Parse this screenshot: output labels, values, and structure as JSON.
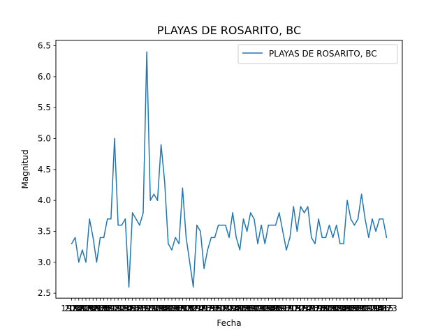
{
  "chart_data": {
    "type": "line",
    "title": "PLAYAS DE ROSARITO, BC",
    "xlabel": "Fecha",
    "ylabel": "Magnitud",
    "ylim": [
      2.42,
      6.59
    ],
    "yticks": [
      "2.5",
      "3.0",
      "3.5",
      "4.0",
      "4.5",
      "5.0",
      "5.5",
      "6.0",
      "6.5"
    ],
    "x_tick_first": "1974",
    "x_tick_last": "2023",
    "legend_position": "top-right",
    "grid": false,
    "colors": {
      "line": "#1f77b4"
    },
    "series": [
      {
        "name": "PLAYAS DE ROSARITO, BC",
        "values": [
          3.3,
          3.4,
          3.0,
          3.2,
          3.0,
          3.7,
          3.4,
          3.0,
          3.4,
          3.4,
          3.7,
          3.7,
          5.0,
          3.6,
          3.6,
          3.7,
          2.6,
          3.8,
          3.7,
          3.6,
          3.8,
          6.4,
          4.0,
          4.1,
          4.0,
          4.9,
          4.3,
          3.3,
          3.2,
          3.4,
          3.3,
          4.2,
          3.4,
          3.0,
          2.6,
          3.6,
          3.5,
          2.9,
          3.2,
          3.4,
          3.4,
          3.6,
          3.6,
          3.6,
          3.4,
          3.8,
          3.4,
          3.2,
          3.7,
          3.5,
          3.8,
          3.7,
          3.3,
          3.6,
          3.3,
          3.6,
          3.6,
          3.6,
          3.8,
          3.5,
          3.2,
          3.4,
          3.9,
          3.5,
          3.9,
          3.8,
          3.9,
          3.4,
          3.3,
          3.7,
          3.4,
          3.4,
          3.6,
          3.4,
          3.6,
          3.3,
          3.3,
          4.0,
          3.7,
          3.6,
          3.7,
          4.1,
          3.7,
          3.4,
          3.7,
          3.5,
          3.7,
          3.7,
          3.4
        ]
      }
    ]
  }
}
